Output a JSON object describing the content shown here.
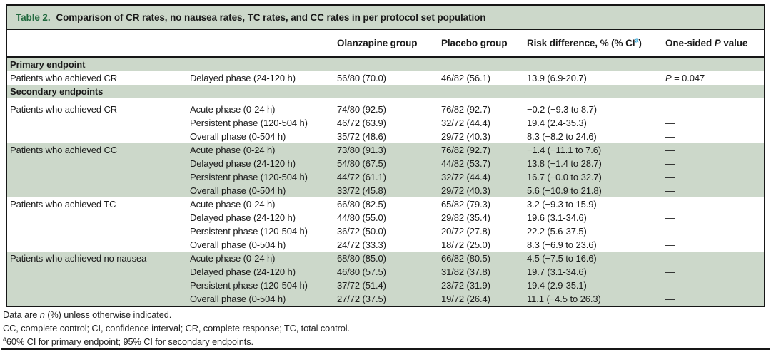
{
  "colors": {
    "band_green": "#ccd8ca",
    "title_green": "#21693e",
    "text": "#1a1a1a",
    "border": "#161616",
    "sup_blue": "#2aa7dc"
  },
  "table": {
    "title": {
      "label": "Table 2.",
      "text": "Comparison of CR rates, no nausea rates, TC rates, and CC rates in per protocol set population"
    },
    "header": {
      "olanzapine": "Olanzapine group",
      "placebo": "Placebo group",
      "risk_prefix": "Risk difference, % (% CI",
      "risk_sup": "a",
      "risk_suffix": ")",
      "p_prefix": "One-sided ",
      "p_italic": "P",
      "p_suffix": " value"
    },
    "bands": {
      "primary": "Primary endpoint",
      "secondary": "Secondary endpoints"
    },
    "rows": [
      {
        "label": "Patients who achieved CR",
        "phase": "Delayed phase (24-120 h)",
        "olz": "56/80 (70.0)",
        "pbo": "46/82 (56.1)",
        "risk": "13.9 (6.9-20.7)",
        "p_sym": "P",
        "p_rest": " = 0.047"
      },
      {
        "label": "Patients who achieved CR",
        "phase": "Acute phase (0-24 h)",
        "olz": "74/80 (92.5)",
        "pbo": "76/82 (92.7)",
        "risk": "−0.2 (−9.3 to 8.7)",
        "p": "—"
      },
      {
        "label": "",
        "phase": "Persistent phase (120-504 h)",
        "olz": "46/72 (63.9)",
        "pbo": "32/72 (44.4)",
        "risk": "19.4 (2.4-35.3)",
        "p": "—"
      },
      {
        "label": "",
        "phase": "Overall phase (0-504 h)",
        "olz": "35/72 (48.6)",
        "pbo": "29/72 (40.3)",
        "risk": "8.3 (−8.2 to 24.6)",
        "p": "—"
      },
      {
        "label": "Patients who achieved CC",
        "phase": "Acute phase (0-24 h)",
        "olz": "73/80 (91.3)",
        "pbo": "76/82 (92.7)",
        "risk": "−1.4 (−11.1 to 7.6)",
        "p": "—"
      },
      {
        "label": "",
        "phase": "Delayed phase (24-120 h)",
        "olz": "54/80 (67.5)",
        "pbo": "44/82 (53.7)",
        "risk": "13.8 (−1.4 to 28.7)",
        "p": "—"
      },
      {
        "label": "",
        "phase": "Persistent phase (120-504 h)",
        "olz": "44/72 (61.1)",
        "pbo": "32/72 (44.4)",
        "risk": "16.7 (−0.0 to 32.7)",
        "p": "—"
      },
      {
        "label": "",
        "phase": "Overall phase (0-504 h)",
        "olz": "33/72 (45.8)",
        "pbo": "29/72 (40.3)",
        "risk": "5.6 (−10.9 to 21.8)",
        "p": "—"
      },
      {
        "label": "Patients who achieved TC",
        "phase": "Acute phase (0-24 h)",
        "olz": "66/80 (82.5)",
        "pbo": "65/82 (79.3)",
        "risk": "3.2 (−9.3 to 15.9)",
        "p": "—"
      },
      {
        "label": "",
        "phase": "Delayed phase (24-120 h)",
        "olz": "44/80 (55.0)",
        "pbo": "29/82 (35.4)",
        "risk": "19.6 (3.1-34.6)",
        "p": "—"
      },
      {
        "label": "",
        "phase": "Persistent phase (120-504 h)",
        "olz": "36/72 (50.0)",
        "pbo": "20/72 (27.8)",
        "risk": "22.2 (5.6-37.5)",
        "p": "—"
      },
      {
        "label": "",
        "phase": "Overall phase (0-504 h)",
        "olz": "24/72 (33.3)",
        "pbo": "18/72 (25.0)",
        "risk": "8.3 (−6.9 to 23.6)",
        "p": "—"
      },
      {
        "label": "Patients who achieved no nausea",
        "phase": "Acute phase (0-24 h)",
        "olz": "68/80 (85.0)",
        "pbo": "66/82 (80.5)",
        "risk": "4.5 (−7.5 to 16.6)",
        "p": "—"
      },
      {
        "label": "",
        "phase": "Delayed phase (24-120 h)",
        "olz": "46/80 (57.5)",
        "pbo": "31/82 (37.8)",
        "risk": "19.7 (3.1-34.6)",
        "p": "—"
      },
      {
        "label": "",
        "phase": "Persistent phase (120-504 h)",
        "olz": "37/72 (51.4)",
        "pbo": "23/72 (31.9)",
        "risk": "19.4 (2.9-35.1)",
        "p": "—"
      },
      {
        "label": "",
        "phase": "Overall phase (0-504 h)",
        "olz": "27/72 (37.5)",
        "pbo": "19/72 (26.4)",
        "risk": "11.1 (−4.5 to 26.3)",
        "p": "—"
      }
    ]
  },
  "footnotes": {
    "line1_pre": "Data are ",
    "line1_italic": "n",
    "line1_post": " (%) unless otherwise indicated.",
    "line2": "CC, complete control; CI, confidence interval; CR, complete response; TC, total control.",
    "line3_sup": "a",
    "line3_text": "60% CI for primary endpoint; 95% CI for secondary endpoints."
  }
}
